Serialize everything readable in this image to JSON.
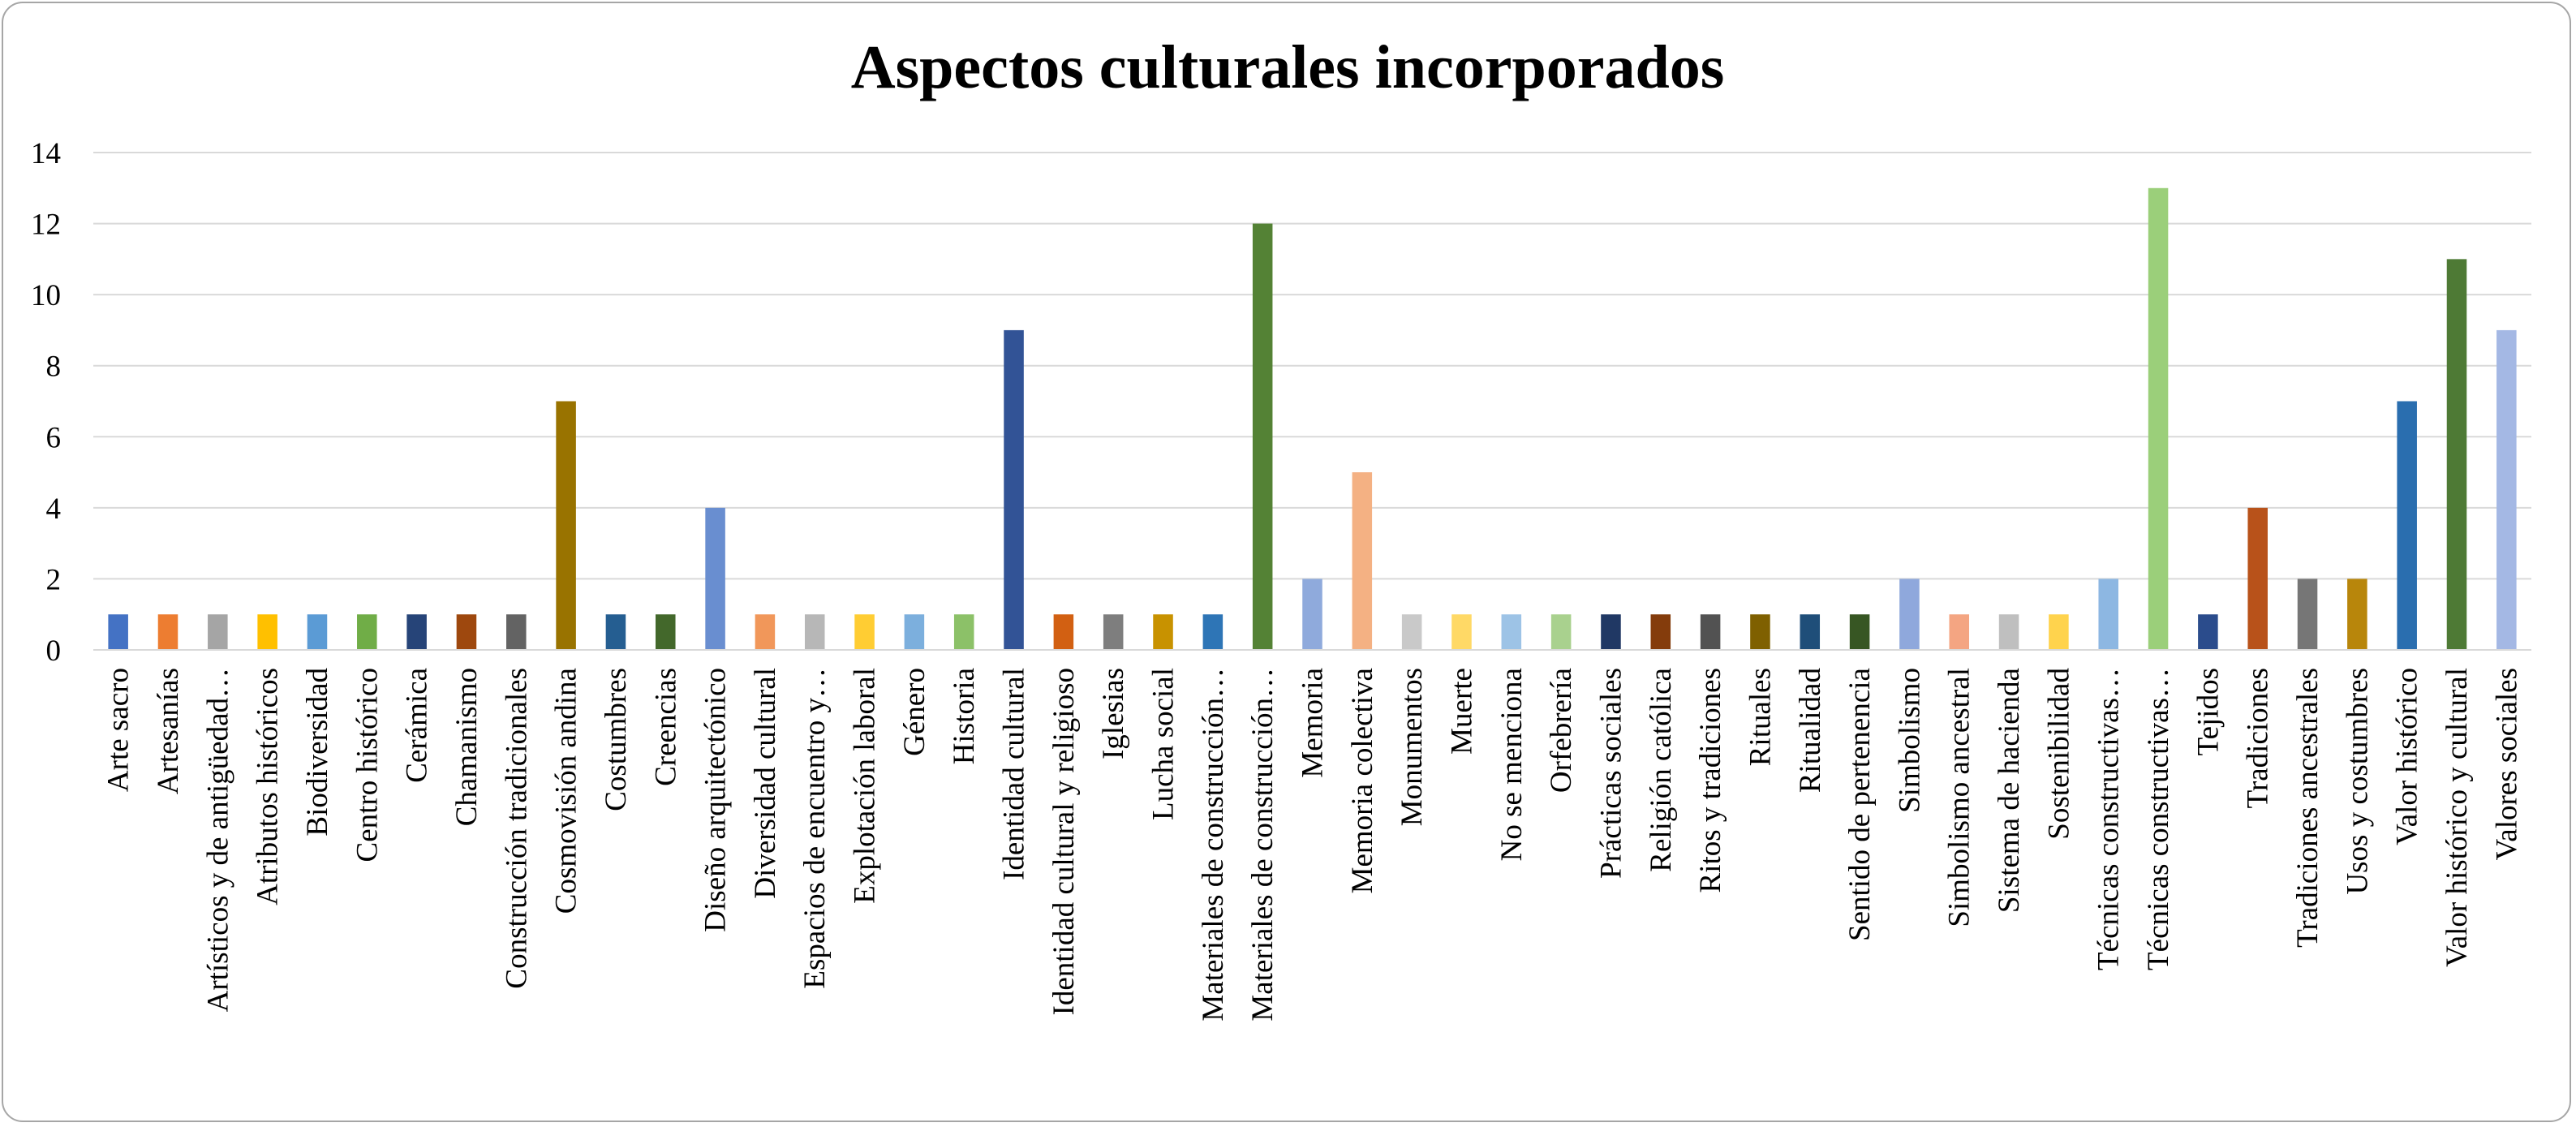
{
  "chart_data": {
    "type": "bar",
    "title": "Aspectos culturales incorporados",
    "xlabel": "",
    "ylabel": "",
    "ylim": [
      0,
      14
    ],
    "yticks": [
      0,
      2,
      4,
      6,
      8,
      10,
      12,
      14
    ],
    "grid": true,
    "legend": "none",
    "categories": [
      "Arte sacro",
      "Artesanías",
      "Artísticos y de antigüedad…",
      "Atributos históricos",
      "Biodiversidad",
      "Centro histórico",
      "Cerámica",
      "Chamanismo",
      "Construcción tradicionales",
      "Cosmovisión andina",
      "Costumbres",
      "Creencias",
      "Diseño arquitectónico",
      "Diversidad cultural",
      "Espacios de encuentro y…",
      "Explotación laboral",
      "Género",
      "Historia",
      "Identidad cultural",
      "Identidad cultural y religioso",
      "Iglesias",
      "Lucha social",
      "Materiales de construcción…",
      "Materiales de construcción…",
      "Memoria",
      "Memoria colectiva",
      "Monumentos",
      "Muerte",
      "No se menciona",
      "Orfebrería",
      "Prácticas sociales",
      "Religión católica",
      "Ritos y tradiciones",
      "Rituales",
      "Ritualidad",
      "Sentido de pertenencia",
      "Simbolismo",
      "Simbolismo ancestral",
      "Sistema de hacienda",
      "Sostenibilidad",
      "Técnicas constructivas…",
      "Técnicas constructivas…",
      "Tejidos",
      "Tradiciones",
      "Tradiciones ancestrales",
      "Usos y costumbres",
      "Valor histórico",
      "Valor histórico y cultural",
      "Valores sociales"
    ],
    "values": [
      1,
      1,
      1,
      1,
      1,
      1,
      1,
      1,
      1,
      7,
      1,
      1,
      4,
      1,
      1,
      1,
      1,
      1,
      9,
      1,
      1,
      1,
      1,
      12,
      2,
      5,
      1,
      1,
      1,
      1,
      1,
      1,
      1,
      1,
      1,
      1,
      2,
      1,
      1,
      1,
      2,
      13,
      1,
      4,
      2,
      2,
      7,
      11,
      9
    ],
    "colors": [
      "#4472C4",
      "#ED7D31",
      "#A5A5A5",
      "#FFC000",
      "#5B9BD5",
      "#70AD47",
      "#264478",
      "#9E480E",
      "#636363",
      "#997300",
      "#255E91",
      "#43682B",
      "#698ED0",
      "#F1975A",
      "#B7B7B7",
      "#FFCD33",
      "#7CAFDD",
      "#8CC168",
      "#325396",
      "#D26012",
      "#7E7E7E",
      "#C89200",
      "#2E75B6",
      "#548235",
      "#8FAADC",
      "#F4B183",
      "#C9C9C9",
      "#FFD966",
      "#9DC3E6",
      "#A9D18E",
      "#203864",
      "#843C0C",
      "#525252",
      "#7F6000",
      "#1F4E79",
      "#375623",
      "#8FA8DC",
      "#F4A582",
      "#BFBFBF",
      "#FFD34D",
      "#8DB7E2",
      "#9BCF7A",
      "#2B4C8C",
      "#B8521A",
      "#767676",
      "#B8860B",
      "#2A6EAF",
      "#4E7A35",
      "#A4B8E4"
    ]
  }
}
